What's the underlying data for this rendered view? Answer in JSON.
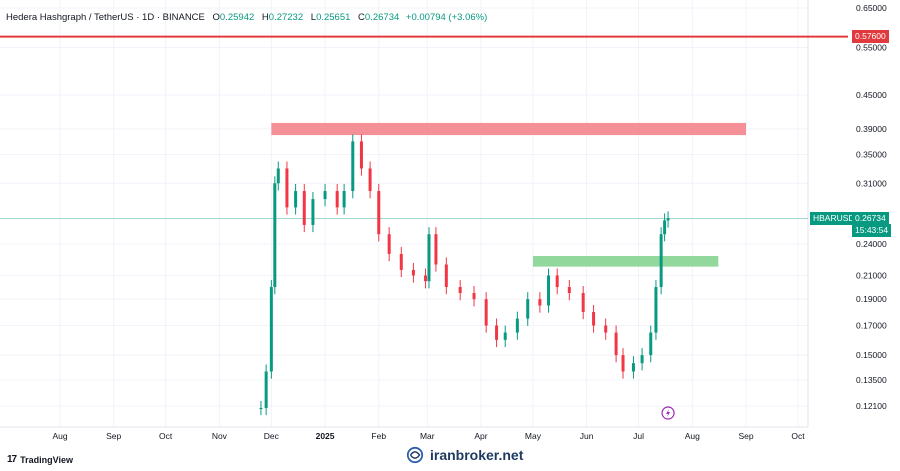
{
  "legend": {
    "symbol": "Hedera Hashgraph / TetherUS · 1D · BINANCE",
    "o_label": "O",
    "o": "0.25942",
    "h_label": "H",
    "h": "0.27232",
    "l_label": "L",
    "l": "0.25651",
    "c_label": "C",
    "c": "0.26734",
    "change": "+0.00794 (+3.06%)"
  },
  "price_tags": {
    "resistance": "0.57600",
    "symbol_tag": "HBARUSDT",
    "last_price": "0.26734",
    "countdown": "15:43:54"
  },
  "footer": {
    "brand": "TradingView",
    "brand_mark": "17",
    "watermark": "iranbroker.net"
  },
  "colors": {
    "up": "#089981",
    "down": "#f23645",
    "resistance_line": "#e03a3e",
    "supply_zone": "#f47c85",
    "demand_zone": "#7fd18b",
    "last_price_line": "#089981",
    "flash_icon": "#9c27b0"
  },
  "chart_data": {
    "type": "candlestick",
    "symbol": "HBARUSDT",
    "timeframe": "1D",
    "exchange": "BINANCE",
    "y_scale": "log",
    "y_ticks": [
      "0.65000",
      "0.55000",
      "0.45000",
      "0.39000",
      "0.35000",
      "0.31000",
      "0.24000",
      "0.21000",
      "0.19000",
      "0.17000",
      "0.15000",
      "0.13500",
      "0.12100"
    ],
    "x_ticks": [
      "Aug",
      "Sep",
      "Oct",
      "Nov",
      "Dec",
      "2025",
      "Feb",
      "Mar",
      "Apr",
      "May",
      "Jun",
      "Jul",
      "Aug",
      "Sep",
      "Oct"
    ],
    "last_close": 0.26734,
    "horizontal_line": {
      "price": 0.576
    },
    "zones": [
      {
        "kind": "supply",
        "from": "2024-12-01",
        "to": "2025-09-01",
        "top": 0.4,
        "bottom": 0.38
      },
      {
        "kind": "demand",
        "from": "2025-05-01",
        "to": "2025-08-16",
        "top": 0.228,
        "bottom": 0.218
      }
    ],
    "series": [
      {
        "date": "2024-11-25",
        "close": 0.12
      },
      {
        "date": "2024-11-28",
        "close": 0.14
      },
      {
        "date": "2024-12-01",
        "close": 0.2
      },
      {
        "date": "2024-12-03",
        "close": 0.31
      },
      {
        "date": "2024-12-05",
        "close": 0.33
      },
      {
        "date": "2024-12-10",
        "close": 0.28
      },
      {
        "date": "2024-12-15",
        "close": 0.3
      },
      {
        "date": "2024-12-20",
        "close": 0.26
      },
      {
        "date": "2024-12-25",
        "close": 0.29
      },
      {
        "date": "2025-01-01",
        "close": 0.3
      },
      {
        "date": "2025-01-08",
        "close": 0.28
      },
      {
        "date": "2025-01-12",
        "close": 0.3
      },
      {
        "date": "2025-01-17",
        "close": 0.37
      },
      {
        "date": "2025-01-22",
        "close": 0.33
      },
      {
        "date": "2025-01-27",
        "close": 0.3
      },
      {
        "date": "2025-02-01",
        "close": 0.25
      },
      {
        "date": "2025-02-07",
        "close": 0.23
      },
      {
        "date": "2025-02-14",
        "close": 0.215
      },
      {
        "date": "2025-02-21",
        "close": 0.21
      },
      {
        "date": "2025-02-28",
        "close": 0.205
      },
      {
        "date": "2025-03-02",
        "close": 0.25
      },
      {
        "date": "2025-03-06",
        "close": 0.22
      },
      {
        "date": "2025-03-12",
        "close": 0.2
      },
      {
        "date": "2025-03-20",
        "close": 0.195
      },
      {
        "date": "2025-03-28",
        "close": 0.19
      },
      {
        "date": "2025-04-04",
        "close": 0.17
      },
      {
        "date": "2025-04-10",
        "close": 0.16
      },
      {
        "date": "2025-04-15",
        "close": 0.165
      },
      {
        "date": "2025-04-22",
        "close": 0.175
      },
      {
        "date": "2025-04-28",
        "close": 0.19
      },
      {
        "date": "2025-05-05",
        "close": 0.185
      },
      {
        "date": "2025-05-10",
        "close": 0.21
      },
      {
        "date": "2025-05-15",
        "close": 0.2
      },
      {
        "date": "2025-05-22",
        "close": 0.195
      },
      {
        "date": "2025-05-30",
        "close": 0.18
      },
      {
        "date": "2025-06-05",
        "close": 0.17
      },
      {
        "date": "2025-06-12",
        "close": 0.165
      },
      {
        "date": "2025-06-18",
        "close": 0.15
      },
      {
        "date": "2025-06-22",
        "close": 0.14
      },
      {
        "date": "2025-06-28",
        "close": 0.145
      },
      {
        "date": "2025-07-03",
        "close": 0.15
      },
      {
        "date": "2025-07-08",
        "close": 0.165
      },
      {
        "date": "2025-07-11",
        "close": 0.2
      },
      {
        "date": "2025-07-14",
        "close": 0.25
      },
      {
        "date": "2025-07-16",
        "close": 0.265
      },
      {
        "date": "2025-07-18",
        "close": 0.26734
      }
    ]
  }
}
